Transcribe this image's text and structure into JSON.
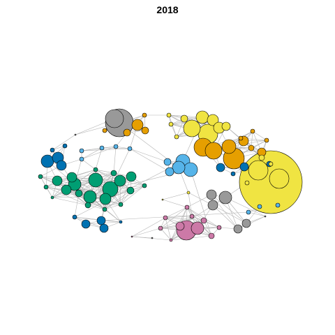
{
  "title": "2018",
  "palette": {
    "gray": "#999999",
    "orange": "#E69F00",
    "yellow": "#F0E442",
    "skyblue": "#56B4E9",
    "blue": "#0072B2",
    "green": "#009E73",
    "pink": "#CC79A7",
    "edge": "#b3b3b3",
    "node_stroke": "#000000"
  },
  "clusters": [
    "gray",
    "orange",
    "yellow",
    "skyblue",
    "blue",
    "green",
    "pink"
  ]
}
